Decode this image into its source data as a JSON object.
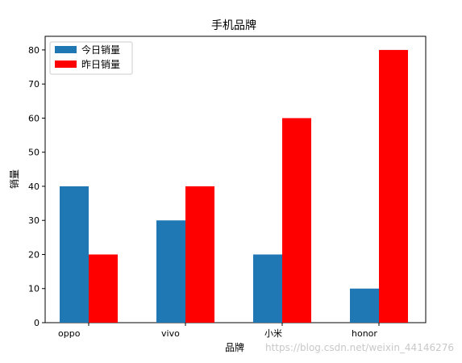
{
  "chart_data": {
    "type": "bar",
    "title": "手机品牌",
    "xlabel": "品牌",
    "ylabel": "销量",
    "categories": [
      "oppo",
      "vivo",
      "小米",
      "honor"
    ],
    "series": [
      {
        "name": "今日销量",
        "values": [
          40,
          30,
          20,
          10
        ],
        "color": "#1f77b4"
      },
      {
        "name": "昨日销量",
        "values": [
          20,
          40,
          60,
          80
        ],
        "color": "#ff0000"
      }
    ],
    "ylim": [
      0,
      84
    ],
    "yticks": [
      0,
      10,
      20,
      30,
      40,
      50,
      60,
      70,
      80
    ],
    "grid": false,
    "legend_position": "top-left"
  },
  "watermark": "https://blog.csdn.net/weixin_44146276"
}
